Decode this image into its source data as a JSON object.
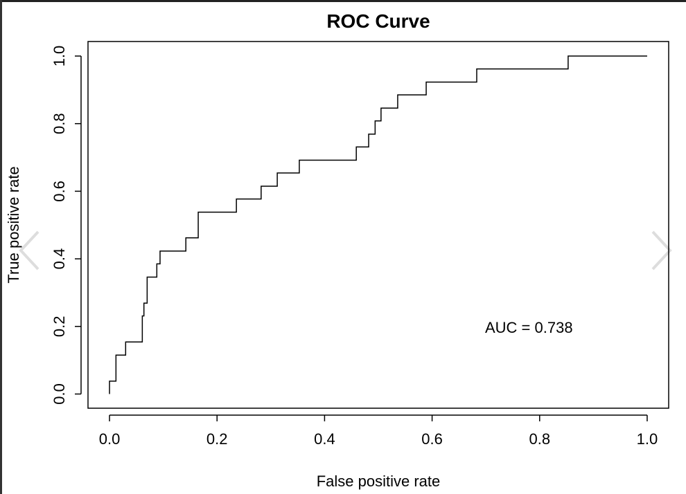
{
  "chart_data": {
    "type": "line",
    "title": "ROC Curve",
    "x_label": "False positive rate",
    "y_label": "True positive rate",
    "annotation": "AUC =  0.738",
    "color": "#000000",
    "x": [
      0,
      0,
      0.012,
      0.012,
      0.03,
      0.03,
      0.061,
      0.061,
      0.064,
      0.064,
      0.07,
      0.07,
      0.088,
      0.088,
      0.094,
      0.094,
      0.142,
      0.142,
      0.165,
      0.165,
      0.236,
      0.236,
      0.282,
      0.282,
      0.312,
      0.312,
      0.353,
      0.353,
      0.459,
      0.459,
      0.482,
      0.482,
      0.494,
      0.494,
      0.505,
      0.505,
      0.536,
      0.536,
      0.589,
      0.589,
      0.683,
      0.683,
      0.853,
      0.853,
      1
    ],
    "values": [
      0,
      0.038,
      0.038,
      0.115,
      0.115,
      0.154,
      0.154,
      0.231,
      0.231,
      0.269,
      0.269,
      0.346,
      0.346,
      0.385,
      0.385,
      0.423,
      0.423,
      0.462,
      0.462,
      0.538,
      0.538,
      0.577,
      0.577,
      0.615,
      0.615,
      0.654,
      0.654,
      0.692,
      0.692,
      0.731,
      0.731,
      0.769,
      0.769,
      0.808,
      0.808,
      0.846,
      0.846,
      0.885,
      0.885,
      0.923,
      0.923,
      0.962,
      0.962,
      1,
      1
    ],
    "xlim": [
      -0.04,
      1.04
    ],
    "ylim": [
      -0.042,
      1.043
    ],
    "xticks": [
      {
        "value": 0,
        "label": "0.0"
      },
      0.2,
      0.4,
      0.6,
      0.8,
      {
        "value": 1,
        "label": "1.0"
      }
    ],
    "yticks": [
      {
        "value": 0,
        "label": "0.0"
      },
      0.2,
      0.4,
      0.6,
      0.8,
      {
        "value": 1,
        "label": "1.0"
      }
    ]
  }
}
